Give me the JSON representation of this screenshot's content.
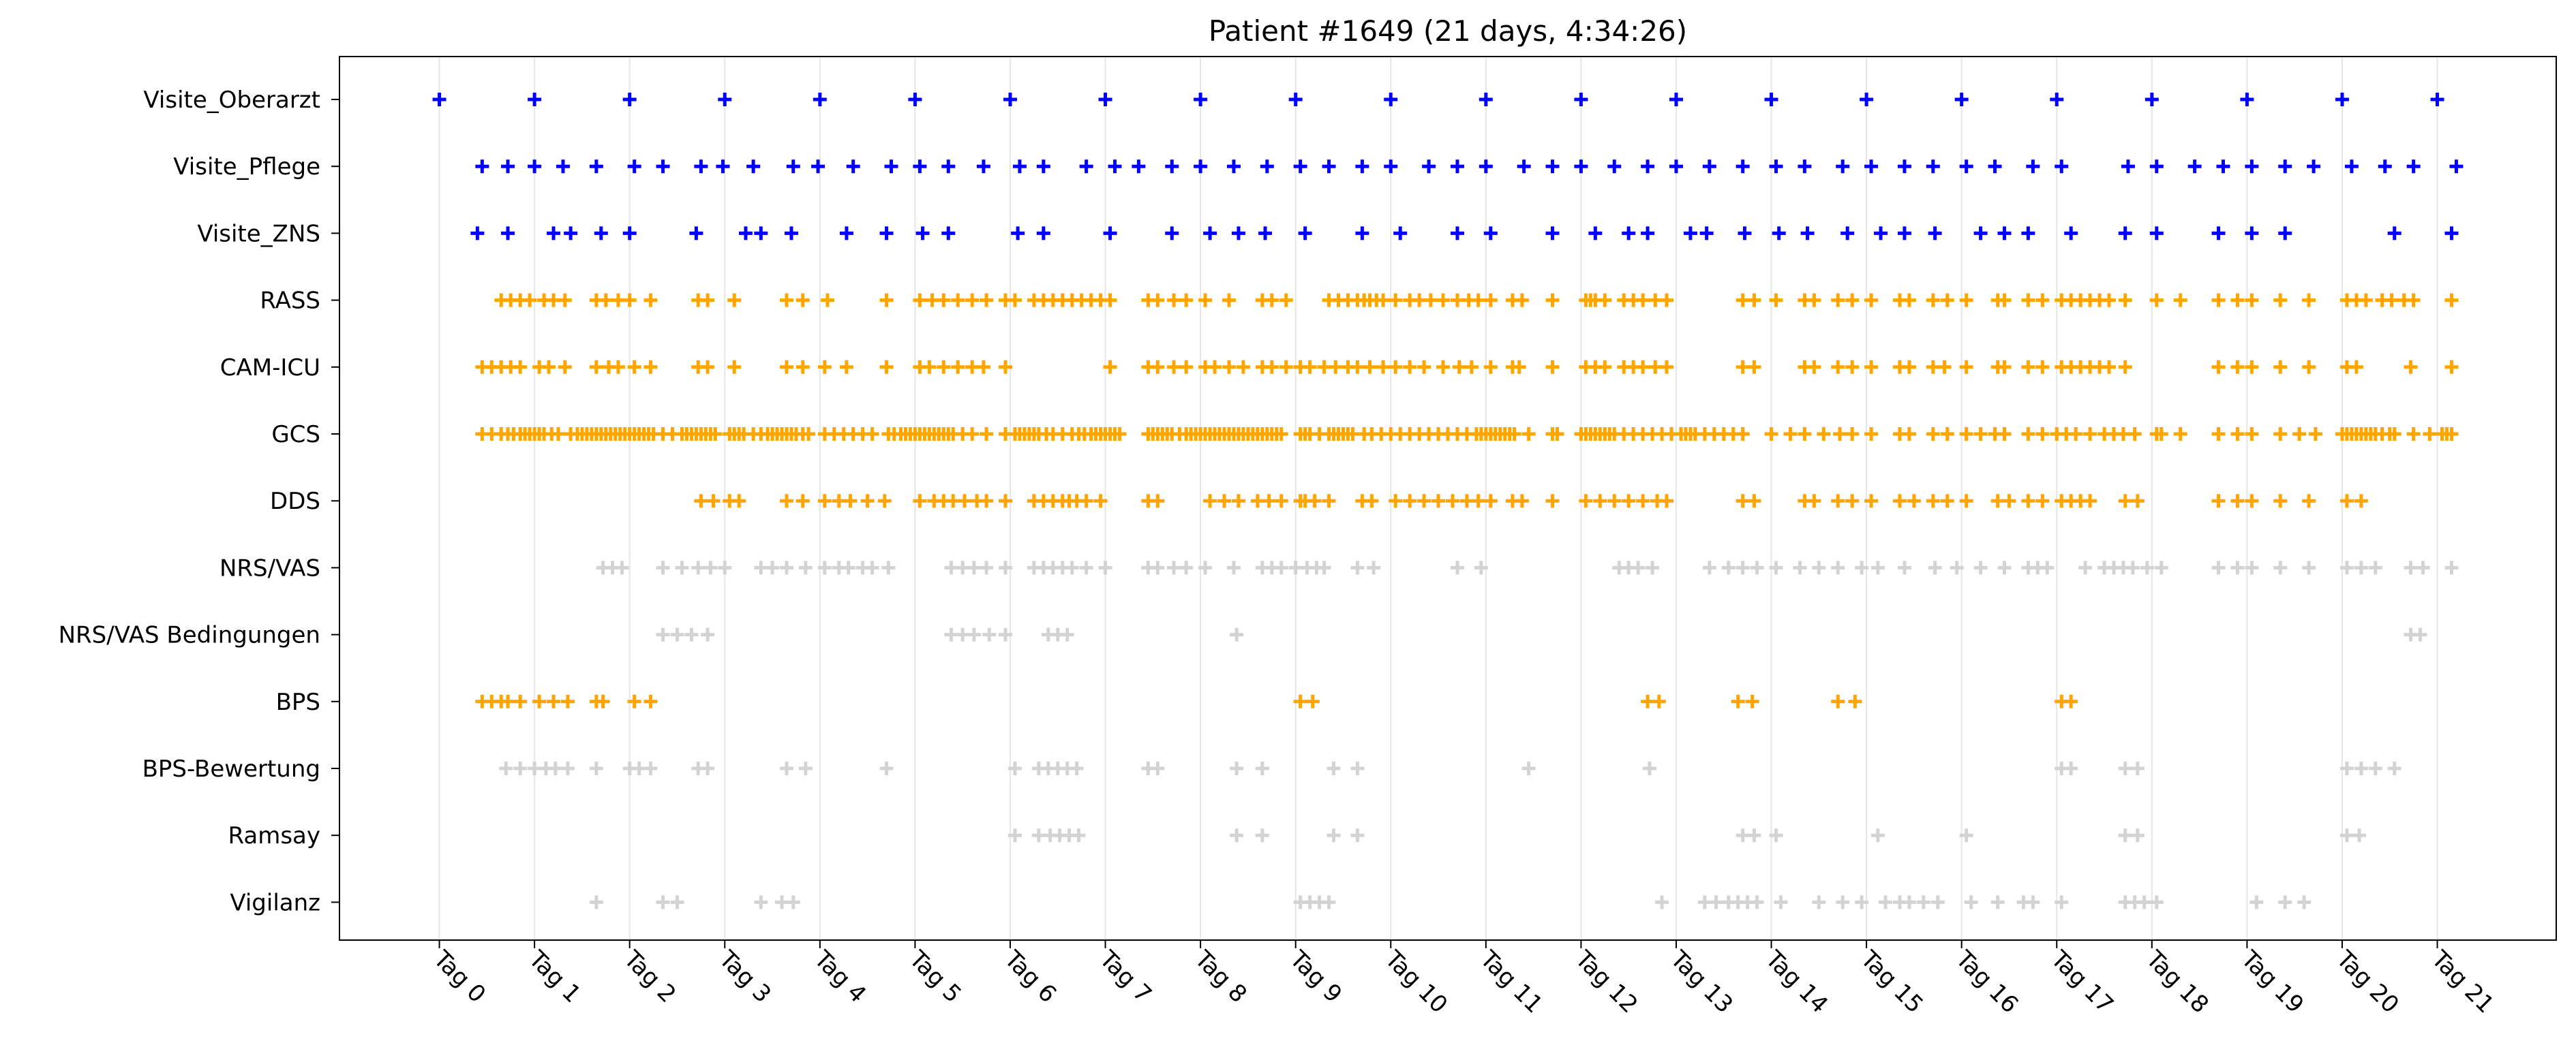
{
  "chart_data": {
    "type": "scatter",
    "title": "Patient #1649 (21 days, 4:34:26)",
    "xlabel": "",
    "ylabel": "",
    "marker": "+",
    "grid": "vertical lines at day ticks",
    "xlim": [
      -1.05,
      22.25
    ],
    "x_ticks": [
      {
        "value": 0,
        "label": "Tag 0"
      },
      {
        "value": 1,
        "label": "Tag 1"
      },
      {
        "value": 2,
        "label": "Tag 2"
      },
      {
        "value": 3,
        "label": "Tag 3"
      },
      {
        "value": 4,
        "label": "Tag 4"
      },
      {
        "value": 5,
        "label": "Tag 5"
      },
      {
        "value": 6,
        "label": "Tag 6"
      },
      {
        "value": 7,
        "label": "Tag 7"
      },
      {
        "value": 8,
        "label": "Tag 8"
      },
      {
        "value": 9,
        "label": "Tag 9"
      },
      {
        "value": 10,
        "label": "Tag 10"
      },
      {
        "value": 11,
        "label": "Tag 11"
      },
      {
        "value": 12,
        "label": "Tag 12"
      },
      {
        "value": 13,
        "label": "Tag 13"
      },
      {
        "value": 14,
        "label": "Tag 14"
      },
      {
        "value": 15,
        "label": "Tag 15"
      },
      {
        "value": 16,
        "label": "Tag 16"
      },
      {
        "value": 17,
        "label": "Tag 17"
      },
      {
        "value": 18,
        "label": "Tag 18"
      },
      {
        "value": 19,
        "label": "Tag 19"
      },
      {
        "value": 20,
        "label": "Tag 20"
      },
      {
        "value": 21,
        "label": "Tag 21"
      }
    ],
    "series": [
      {
        "name": "Visite_Oberarzt",
        "color": "#0000ff",
        "x": [
          0,
          1,
          2,
          3,
          4,
          5,
          6,
          7,
          8,
          9,
          10,
          11,
          12,
          13,
          14,
          15,
          16,
          17,
          18,
          19,
          20,
          21
        ]
      },
      {
        "name": "Visite_Pflege",
        "color": "#0000ff",
        "x": [
          0.45,
          0.72,
          1.0,
          1.3,
          1.65,
          2.05,
          2.35,
          2.75,
          2.98,
          3.3,
          3.72,
          3.98,
          4.35,
          4.75,
          5.05,
          5.35,
          5.72,
          6.1,
          6.35,
          6.8,
          7.1,
          7.35,
          7.7,
          8.0,
          8.35,
          8.7,
          9.05,
          9.35,
          9.7,
          10.0,
          10.4,
          10.7,
          11.0,
          11.4,
          11.7,
          12.0,
          12.35,
          12.7,
          13.0,
          13.35,
          13.7,
          14.05,
          14.35,
          14.75,
          15.05,
          15.4,
          15.7,
          16.05,
          16.35,
          16.75,
          17.05,
          17.75,
          18.05,
          18.45,
          18.75,
          19.05,
          19.4,
          19.7,
          20.1,
          20.45,
          20.75,
          21.2
        ]
      },
      {
        "name": "Visite_ZNS",
        "color": "#0000ff",
        "x": [
          0.4,
          0.72,
          1.2,
          1.38,
          1.7,
          2.0,
          2.7,
          3.22,
          3.38,
          3.7,
          4.28,
          4.7,
          5.08,
          5.35,
          6.08,
          6.35,
          7.05,
          7.7,
          8.1,
          8.4,
          8.68,
          9.1,
          9.7,
          10.1,
          10.7,
          11.05,
          11.7,
          12.15,
          12.5,
          12.7,
          13.15,
          13.32,
          13.72,
          14.08,
          14.38,
          14.8,
          15.15,
          15.4,
          15.72,
          16.2,
          16.45,
          16.7,
          17.15,
          17.72,
          18.05,
          18.7,
          19.05,
          19.4,
          20.55,
          21.15
        ]
      },
      {
        "name": "RASS",
        "color": "#ffa500",
        "x": [
          0.65,
          0.75,
          0.85,
          0.95,
          1.1,
          1.2,
          1.32,
          1.65,
          1.75,
          1.88,
          2.0,
          2.22,
          2.72,
          2.82,
          3.1,
          3.65,
          3.82,
          4.08,
          4.7,
          5.05,
          5.18,
          5.3,
          5.45,
          5.6,
          5.75,
          5.95,
          6.05,
          6.25,
          6.35,
          6.45,
          6.55,
          6.65,
          6.75,
          6.85,
          6.95,
          7.05,
          7.45,
          7.55,
          7.72,
          7.85,
          8.05,
          8.3,
          8.65,
          8.75,
          8.9,
          9.35,
          9.45,
          9.55,
          9.65,
          9.72,
          9.78,
          9.85,
          9.92,
          10.05,
          10.2,
          10.3,
          10.42,
          10.55,
          10.7,
          10.82,
          10.92,
          11.05,
          11.28,
          11.38,
          11.7,
          12.05,
          12.1,
          12.15,
          12.25,
          12.45,
          12.55,
          12.65,
          12.78,
          12.9,
          13.7,
          13.82,
          14.05,
          14.35,
          14.45,
          14.7,
          14.85,
          15.05,
          15.35,
          15.45,
          15.7,
          15.85,
          16.05,
          16.38,
          16.45,
          16.7,
          16.85,
          17.05,
          17.15,
          17.25,
          17.35,
          17.45,
          17.55,
          17.72,
          18.05,
          18.3,
          18.7,
          18.9,
          19.05,
          19.35,
          19.65,
          20.05,
          20.15,
          20.25,
          20.42,
          20.52,
          20.65,
          20.75,
          21.15
        ]
      },
      {
        "name": "CAM-ICU",
        "color": "#ffa500",
        "x": [
          0.45,
          0.55,
          0.65,
          0.75,
          0.85,
          1.05,
          1.15,
          1.32,
          1.65,
          1.78,
          1.88,
          2.05,
          2.22,
          2.72,
          2.82,
          3.1,
          3.65,
          3.82,
          4.05,
          4.28,
          4.7,
          5.05,
          5.15,
          5.3,
          5.45,
          5.6,
          5.72,
          5.95,
          7.05,
          7.45,
          7.55,
          7.72,
          7.85,
          8.05,
          8.15,
          8.3,
          8.45,
          8.65,
          8.75,
          8.9,
          9.05,
          9.15,
          9.3,
          9.42,
          9.55,
          9.65,
          9.78,
          9.92,
          10.05,
          10.2,
          10.35,
          10.55,
          10.72,
          10.85,
          11.05,
          11.28,
          11.35,
          11.7,
          12.05,
          12.15,
          12.25,
          12.45,
          12.55,
          12.65,
          12.78,
          12.9,
          13.7,
          13.82,
          14.35,
          14.45,
          14.7,
          14.85,
          15.05,
          15.35,
          15.45,
          15.7,
          15.82,
          16.05,
          16.38,
          16.45,
          16.7,
          16.85,
          17.05,
          17.15,
          17.25,
          17.35,
          17.45,
          17.55,
          17.72,
          18.7,
          18.9,
          19.05,
          19.35,
          19.65,
          20.05,
          20.15,
          20.72,
          21.15
        ]
      },
      {
        "name": "GCS",
        "color": "#ffa500",
        "x": [
          0.45,
          0.55,
          0.65,
          0.72,
          0.78,
          0.85,
          0.9,
          0.95,
          1.0,
          1.05,
          1.1,
          1.18,
          1.25,
          1.38,
          1.45,
          1.5,
          1.55,
          1.6,
          1.65,
          1.7,
          1.75,
          1.8,
          1.85,
          1.9,
          1.95,
          2.0,
          2.05,
          2.1,
          2.15,
          2.2,
          2.25,
          2.35,
          2.45,
          2.55,
          2.6,
          2.65,
          2.7,
          2.75,
          2.8,
          2.85,
          2.9,
          3.05,
          3.1,
          3.15,
          3.2,
          3.3,
          3.38,
          3.45,
          3.5,
          3.55,
          3.6,
          3.65,
          3.7,
          3.75,
          3.82,
          3.88,
          4.05,
          4.15,
          4.25,
          4.35,
          4.45,
          4.55,
          4.72,
          4.78,
          4.85,
          4.9,
          4.95,
          5.0,
          5.05,
          5.1,
          5.15,
          5.2,
          5.25,
          5.3,
          5.35,
          5.4,
          5.5,
          5.6,
          5.75,
          5.95,
          6.05,
          6.1,
          6.15,
          6.2,
          6.25,
          6.3,
          6.38,
          6.45,
          6.55,
          6.65,
          6.72,
          6.78,
          6.85,
          6.9,
          6.95,
          7.0,
          7.05,
          7.1,
          7.15,
          7.45,
          7.5,
          7.55,
          7.6,
          7.65,
          7.7,
          7.78,
          7.85,
          7.9,
          7.95,
          8.0,
          8.05,
          8.1,
          8.15,
          8.2,
          8.25,
          8.3,
          8.35,
          8.4,
          8.45,
          8.5,
          8.55,
          8.6,
          8.65,
          8.7,
          8.75,
          8.8,
          8.85,
          9.05,
          9.1,
          9.15,
          9.25,
          9.35,
          9.4,
          9.45,
          9.5,
          9.55,
          9.6,
          9.72,
          9.8,
          9.9,
          10.0,
          10.1,
          10.2,
          10.3,
          10.4,
          10.5,
          10.6,
          10.7,
          10.8,
          10.9,
          10.95,
          11.0,
          11.05,
          11.1,
          11.15,
          11.2,
          11.25,
          11.3,
          11.45,
          11.7,
          11.75,
          12.0,
          12.05,
          12.1,
          12.15,
          12.2,
          12.25,
          12.3,
          12.35,
          12.45,
          12.55,
          12.65,
          12.75,
          12.85,
          12.95,
          13.05,
          13.1,
          13.15,
          13.2,
          13.3,
          13.4,
          13.5,
          13.6,
          13.7,
          14.0,
          14.2,
          14.35,
          14.55,
          14.72,
          14.85,
          15.05,
          15.35,
          15.45,
          15.7,
          15.85,
          16.05,
          16.2,
          16.35,
          16.45,
          16.7,
          16.85,
          17.0,
          17.1,
          17.2,
          17.35,
          17.5,
          17.6,
          17.7,
          17.82,
          18.05,
          18.1,
          18.3,
          18.7,
          18.9,
          19.05,
          19.35,
          19.55,
          19.72,
          20.0,
          20.05,
          20.1,
          20.15,
          20.2,
          20.25,
          20.3,
          20.35,
          20.42,
          20.5,
          20.55,
          20.75,
          20.92,
          21.05,
          21.1,
          21.15
        ]
      },
      {
        "name": "DDS",
        "color": "#ffa500",
        "x": [
          2.75,
          2.88,
          3.05,
          3.15,
          3.65,
          3.82,
          4.05,
          4.2,
          4.32,
          4.5,
          4.68,
          5.05,
          5.2,
          5.3,
          5.4,
          5.52,
          5.65,
          5.75,
          5.95,
          6.25,
          6.35,
          6.45,
          6.55,
          6.62,
          6.7,
          6.8,
          6.95,
          7.45,
          7.55,
          8.1,
          8.25,
          8.4,
          8.6,
          8.72,
          8.85,
          9.05,
          9.1,
          9.2,
          9.35,
          9.7,
          9.8,
          10.05,
          10.2,
          10.35,
          10.5,
          10.65,
          10.8,
          10.92,
          11.05,
          11.28,
          11.38,
          11.7,
          12.05,
          12.2,
          12.35,
          12.5,
          12.65,
          12.8,
          12.9,
          13.7,
          13.82,
          14.35,
          14.45,
          14.7,
          14.85,
          15.05,
          15.35,
          15.5,
          15.7,
          15.85,
          16.05,
          16.38,
          16.5,
          16.7,
          16.85,
          17.05,
          17.15,
          17.25,
          17.35,
          17.72,
          17.85,
          18.7,
          18.9,
          19.05,
          19.35,
          19.65,
          20.05,
          20.2
        ]
      },
      {
        "name": "NRS/VAS",
        "color": "#d3d3d3",
        "x": [
          1.72,
          1.82,
          1.92,
          2.35,
          2.55,
          2.72,
          2.85,
          3.0,
          3.38,
          3.5,
          3.65,
          3.85,
          4.05,
          4.2,
          4.3,
          4.45,
          4.55,
          4.72,
          5.38,
          5.5,
          5.62,
          5.75,
          5.95,
          6.25,
          6.35,
          6.45,
          6.55,
          6.65,
          6.8,
          7.0,
          7.45,
          7.55,
          7.72,
          7.85,
          8.05,
          8.35,
          8.65,
          8.75,
          8.85,
          9.0,
          9.12,
          9.22,
          9.3,
          9.65,
          9.82,
          10.7,
          10.95,
          12.4,
          12.5,
          12.6,
          12.75,
          13.35,
          13.55,
          13.7,
          13.85,
          14.05,
          14.3,
          14.5,
          14.7,
          14.95,
          15.12,
          15.4,
          15.72,
          15.95,
          16.2,
          16.45,
          16.7,
          16.8,
          16.9,
          17.3,
          17.5,
          17.6,
          17.7,
          17.8,
          17.95,
          18.1,
          18.7,
          18.9,
          19.05,
          19.35,
          19.65,
          20.05,
          20.2,
          20.35,
          20.72,
          20.85,
          21.15
        ]
      },
      {
        "name": "NRS/VAS Bedingungen",
        "color": "#d3d3d3",
        "x": [
          2.35,
          2.5,
          2.65,
          2.82,
          5.38,
          5.5,
          5.62,
          5.78,
          5.95,
          6.4,
          6.5,
          6.6,
          8.38,
          20.72,
          20.82
        ]
      },
      {
        "name": "BPS",
        "color": "#ffa500",
        "x": [
          0.45,
          0.55,
          0.65,
          0.72,
          0.85,
          1.05,
          1.2,
          1.35,
          1.65,
          1.72,
          2.05,
          2.22,
          9.05,
          9.18,
          12.7,
          12.82,
          13.65,
          13.8,
          14.7,
          14.88,
          17.05,
          17.15
        ]
      },
      {
        "name": "BPS-Bewertung",
        "color": "#d3d3d3",
        "x": [
          0.7,
          0.85,
          1.0,
          1.12,
          1.22,
          1.35,
          1.65,
          2.0,
          2.1,
          2.22,
          2.72,
          2.82,
          3.65,
          3.85,
          4.7,
          6.05,
          6.3,
          6.4,
          6.5,
          6.6,
          6.7,
          7.45,
          7.55,
          8.38,
          8.65,
          9.4,
          9.65,
          11.45,
          12.72,
          17.05,
          17.15,
          17.72,
          17.85,
          20.05,
          20.2,
          20.35,
          20.55
        ]
      },
      {
        "name": "Ramsay",
        "color": "#d3d3d3",
        "x": [
          6.05,
          6.3,
          6.42,
          6.52,
          6.62,
          6.72,
          8.38,
          8.65,
          9.4,
          9.65,
          13.7,
          13.82,
          14.05,
          15.12,
          16.05,
          17.72,
          17.85,
          20.05,
          20.18
        ]
      },
      {
        "name": "Vigilanz",
        "color": "#d3d3d3",
        "x": [
          1.65,
          2.35,
          2.5,
          3.38,
          3.6,
          3.72,
          9.05,
          9.15,
          9.25,
          9.35,
          12.85,
          13.3,
          13.42,
          13.55,
          13.65,
          13.75,
          13.85,
          14.1,
          14.5,
          14.75,
          14.95,
          15.2,
          15.35,
          15.45,
          15.6,
          15.75,
          16.1,
          16.38,
          16.65,
          16.75,
          17.05,
          17.72,
          17.82,
          17.92,
          18.05,
          19.1,
          19.4,
          19.6
        ]
      }
    ]
  }
}
